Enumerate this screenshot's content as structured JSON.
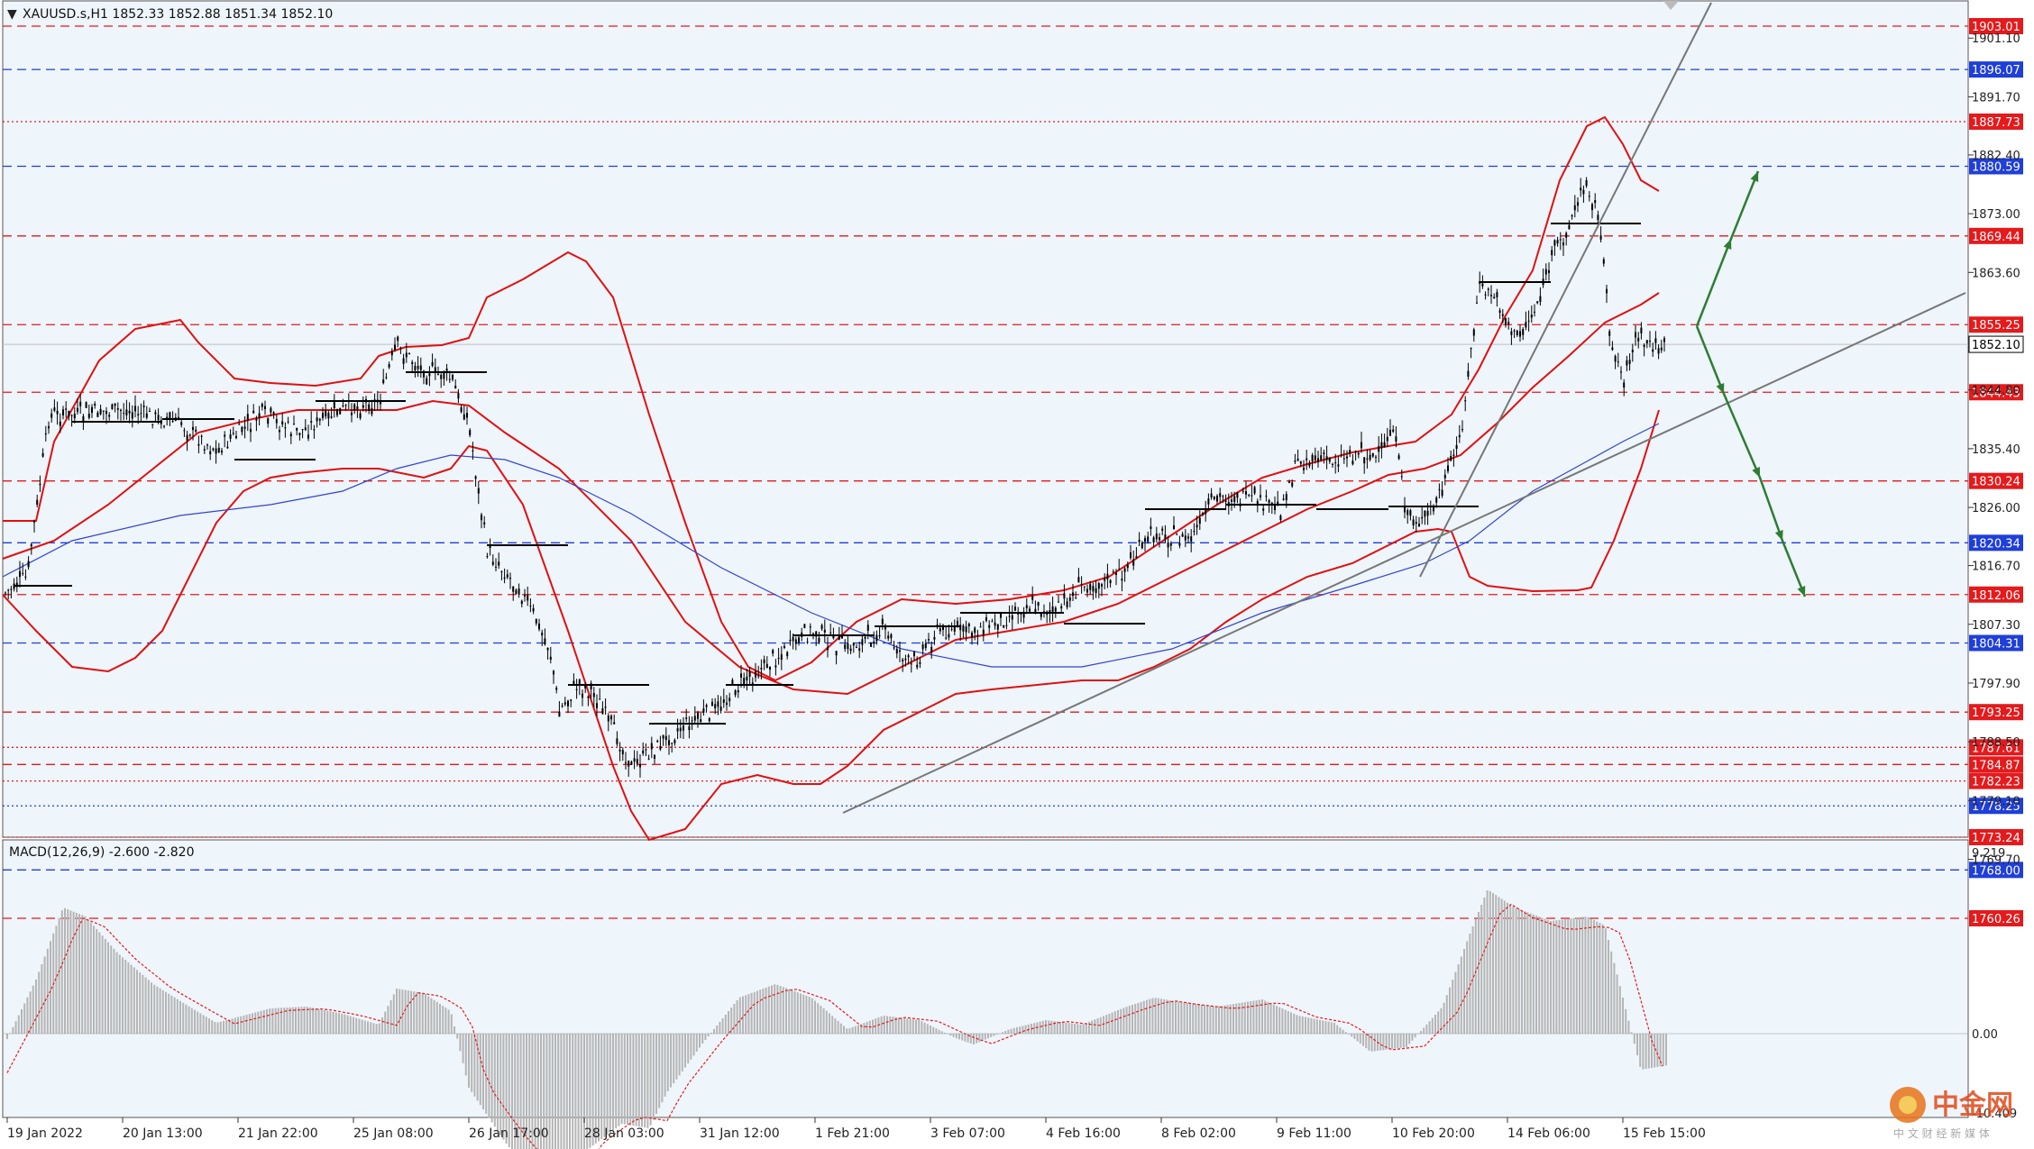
{
  "header": {
    "symbol_line": "XAUUSD.s,H1  1852.33 1852.88 1851.34 1852.10"
  },
  "price_axis": {
    "ticks": [
      "1901.10",
      "1891.70",
      "1882.40",
      "1873.00",
      "1863.60",
      "1844.80",
      "1835.40",
      "1826.00",
      "1816.70",
      "1807.30",
      "1797.90",
      "1788.50",
      "1779.10",
      "1769.70"
    ]
  },
  "levels": [
    {
      "label": "1903.01",
      "color": "#e41a1c",
      "style": "dash"
    },
    {
      "label": "1896.07",
      "color": "#1f3fd8",
      "style": "dash"
    },
    {
      "label": "1887.73",
      "color": "#e41a1c",
      "style": "dot"
    },
    {
      "label": "1880.59",
      "color": "#1f3fd8",
      "style": "dash"
    },
    {
      "label": "1869.44",
      "color": "#e41a1c",
      "style": "dash"
    },
    {
      "label": "1855.25",
      "color": "#e41a1c",
      "style": "dash"
    },
    {
      "label": "1844.43",
      "color": "#e41a1c",
      "style": "dash"
    },
    {
      "label": "1830.24",
      "color": "#e41a1c",
      "style": "dash"
    },
    {
      "label": "1820.34",
      "color": "#1f3fd8",
      "style": "dash"
    },
    {
      "label": "1812.06",
      "color": "#e41a1c",
      "style": "dash"
    },
    {
      "label": "1804.31",
      "color": "#1f3fd8",
      "style": "dash"
    },
    {
      "label": "1793.25",
      "color": "#e41a1c",
      "style": "dash"
    },
    {
      "label": "1787.61",
      "color": "#e41a1c",
      "style": "dot"
    },
    {
      "label": "1784.87",
      "color": "#e41a1c",
      "style": "dash"
    },
    {
      "label": "1782.23",
      "color": "#e41a1c",
      "style": "dot"
    },
    {
      "label": "1778.25",
      "color": "#1f3fd8",
      "style": "dot"
    },
    {
      "label": "1773.24",
      "color": "#e41a1c",
      "style": "dot"
    },
    {
      "label": "1768.00",
      "color": "#1f3fd8",
      "style": "dash"
    },
    {
      "label": "1760.26",
      "color": "#e41a1c",
      "style": "dash"
    }
  ],
  "current_price": {
    "label": "1852.10",
    "value": 1852.1
  },
  "macd": {
    "label": "MACD(12,26,9) -2.600 -2.820",
    "ticks": [
      "9.219",
      "0.00",
      "-10.409"
    ]
  },
  "time_axis": {
    "labels": [
      "19 Jan 2022",
      "20 Jan 13:00",
      "21 Jan 22:00",
      "25 Jan 08:00",
      "26 Jan 17:00",
      "28 Jan 03:00",
      "31 Jan 12:00",
      "1 Feb 21:00",
      "3 Feb 07:00",
      "4 Feb 16:00",
      "8 Feb 02:00",
      "9 Feb 11:00",
      "10 Feb 20:00",
      "14 Feb 06:00",
      "15 Feb 15:00"
    ]
  },
  "watermark": {
    "text": "中金网",
    "subtext": "中 文 财 经 新 媒 体"
  },
  "colors": {
    "background": "#eef5fb",
    "red": "#e41a1c",
    "blue": "#1f3fd8",
    "green": "#2e7d32",
    "band": "#e01010",
    "ma": "#3344cc"
  }
}
